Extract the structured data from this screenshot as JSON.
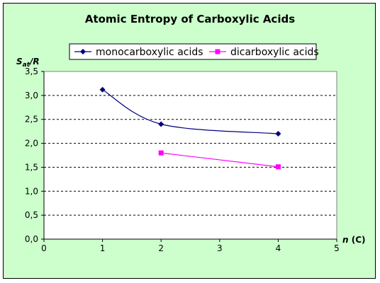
{
  "chart_data": {
    "type": "scatter",
    "title": "Atomic Entropy of Carboxylic Acids",
    "ylabel": {
      "main": "S",
      "sub": "at",
      "tail": "/R"
    },
    "xlabel": {
      "main": "n",
      "tail": " (C)"
    },
    "xlim": [
      0,
      5
    ],
    "ylim": [
      0,
      3.5
    ],
    "x_ticks": [
      "0",
      "1",
      "2",
      "3",
      "4",
      "5"
    ],
    "y_ticks": [
      "0,0",
      "0,5",
      "1,0",
      "1,5",
      "2,0",
      "2,5",
      "3,0",
      "3,5"
    ],
    "grid": true,
    "legend_position": "top",
    "series": [
      {
        "name": "monocarboxylic acids",
        "color": "#000080",
        "marker": "diamond",
        "smooth": true,
        "x": [
          1,
          2,
          4
        ],
        "y": [
          3.12,
          2.4,
          2.2
        ]
      },
      {
        "name": "dicarboxylic acids",
        "color": "#ff00ff",
        "marker": "square",
        "smooth": false,
        "x": [
          2,
          4
        ],
        "y": [
          1.8,
          1.51
        ]
      }
    ]
  }
}
